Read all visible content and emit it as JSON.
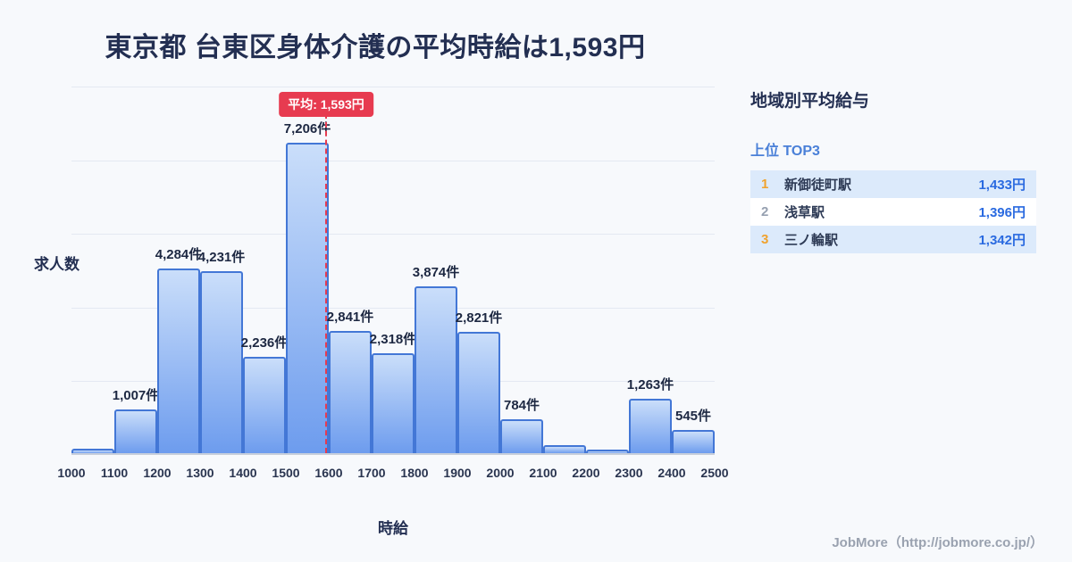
{
  "title": "東京都 台東区身体介護の平均時給は1,593円",
  "chart_data": {
    "type": "bar",
    "title": "東京都 台東区身体介護の平均時給は1,593円",
    "xlabel": "時給",
    "ylabel": "求人数",
    "x_range": [
      1000,
      2500
    ],
    "bin_width": 100,
    "x_tick_labels": [
      "1000",
      "1100",
      "1200",
      "1300",
      "1400",
      "1500",
      "1600",
      "1700",
      "1800",
      "1900",
      "2000",
      "2100",
      "2200",
      "2300",
      "2400",
      "2500"
    ],
    "values": [
      100,
      1007,
      4284,
      4231,
      2236,
      7206,
      2841,
      2318,
      3874,
      2821,
      784,
      180,
      90,
      1263,
      545
    ],
    "bar_labels": [
      "",
      "1,007件",
      "4,284件",
      "4,231件",
      "2,236件",
      "7,206件",
      "2,841件",
      "2,318件",
      "3,874件",
      "2,821件",
      "784件",
      "",
      "",
      "1,263件",
      "545件"
    ],
    "average_line": {
      "value": 1593,
      "label": "平均: 1,593円"
    },
    "ylim": [
      0,
      8550
    ],
    "grid": "horizontal",
    "legend": "none"
  },
  "side_panel": {
    "heading": "地域別平均給与",
    "subheading": "上位 TOP3",
    "rows": [
      {
        "rank": "1",
        "name": "新御徒町駅",
        "value": "1,433円"
      },
      {
        "rank": "2",
        "name": "浅草駅",
        "value": "1,396円"
      },
      {
        "rank": "3",
        "name": "三ノ輪駅",
        "value": "1,342円"
      }
    ]
  },
  "footer": {
    "credit": "JobMore（http://jobmore.co.jp/）"
  },
  "colors": {
    "bg": "#f7f9fc",
    "navy": "#232f52",
    "bar_top": "#cadefa",
    "bar_bottom": "#6d9cee",
    "bar_border": "#4377d6",
    "grid": "#e4e9f2",
    "axis_line": "#c8cfdb",
    "accent_red": "#e73b50",
    "accent_blue": "#2a6ae0",
    "rank_orange": "#f0a22e",
    "rank_gray": "#96a0b0",
    "row_highlight": "#dceafb",
    "subheading_blue": "#4a80d8",
    "footer_gray": "#9aa2b0"
  }
}
